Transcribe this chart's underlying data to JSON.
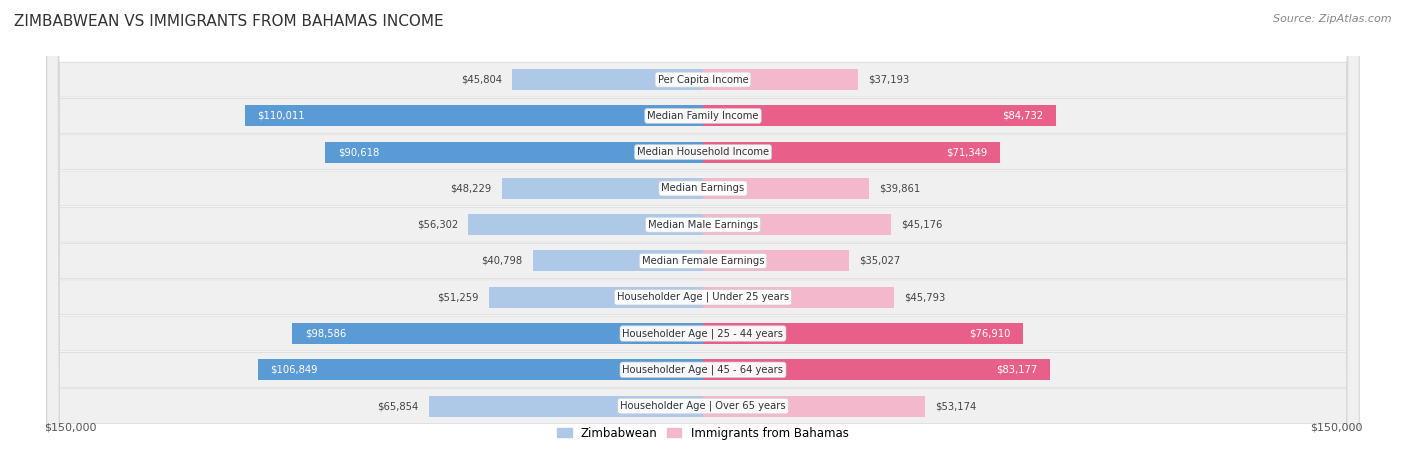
{
  "title": "ZIMBABWEAN VS IMMIGRANTS FROM BAHAMAS INCOME",
  "source": "Source: ZipAtlas.com",
  "categories": [
    "Per Capita Income",
    "Median Family Income",
    "Median Household Income",
    "Median Earnings",
    "Median Male Earnings",
    "Median Female Earnings",
    "Householder Age | Under 25 years",
    "Householder Age | 25 - 44 years",
    "Householder Age | 45 - 64 years",
    "Householder Age | Over 65 years"
  ],
  "zimbabwean_values": [
    45804,
    110011,
    90618,
    48229,
    56302,
    40798,
    51259,
    98586,
    106849,
    65854
  ],
  "bahamas_values": [
    37193,
    84732,
    71349,
    39861,
    45176,
    35027,
    45793,
    76910,
    83177,
    53174
  ],
  "zimbabwean_labels": [
    "$45,804",
    "$110,011",
    "$90,618",
    "$48,229",
    "$56,302",
    "$40,798",
    "$51,259",
    "$98,586",
    "$106,849",
    "$65,854"
  ],
  "bahamas_labels": [
    "$37,193",
    "$84,732",
    "$71,349",
    "$39,861",
    "$45,176",
    "$35,027",
    "$45,793",
    "$76,910",
    "$83,177",
    "$53,174"
  ],
  "color_zimbabwean_dark": "#5b9bd5",
  "color_zimbabwean_light": "#aec9e8",
  "color_bahamas_dark": "#e8608a",
  "color_bahamas_light": "#f4b8cc",
  "color_row_bg": "#f0f0f0",
  "color_row_border": "#d8d8d8",
  "max_value": 150000,
  "x_label_left": "$150,000",
  "x_label_right": "$150,000",
  "legend_zimbabwean": "Zimbabwean",
  "legend_bahamas": "Immigrants from Bahamas",
  "background_color": "#ffffff",
  "zim_dark_threshold": 85000,
  "bah_dark_threshold": 65000
}
